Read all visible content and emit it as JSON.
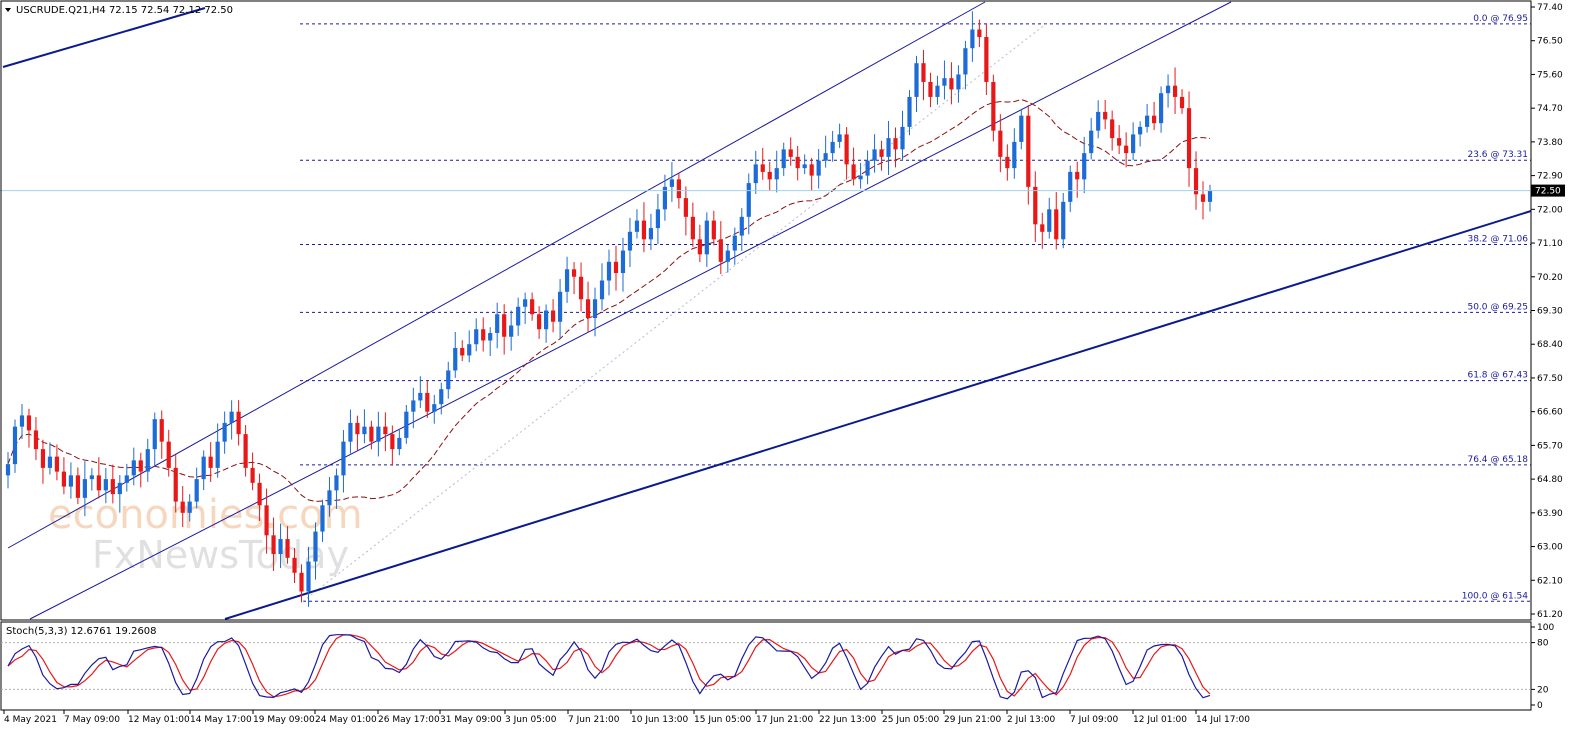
{
  "header": {
    "title": "USCRUDE.Q21,H4  72.15 72.54 72.12 72.50",
    "stoch_title": "Stoch(5,3,3) 12.6761 19.2608"
  },
  "watermark": {
    "line1": "economies.com",
    "line2": "FxNewsToday"
  },
  "colors": {
    "bull": "#1c6bd6",
    "bear": "#e81818",
    "ma": "#8b0f0f",
    "channel": "#1a1aa0",
    "trend": "#0b1a8c",
    "fib": "#1a1aa0",
    "stoch_main": "#1a1aa0",
    "stoch_signal": "#e81818",
    "price_line": "#9fd0e8"
  },
  "chart_data": {
    "type": "candlestick",
    "symbol": "USCRUDE.Q21",
    "timeframe": "H4",
    "ohlc": {
      "open": 72.15,
      "high": 72.54,
      "low": 72.12,
      "close": 72.5
    },
    "current_price": "72.50",
    "ylim": [
      61.2,
      77.4
    ],
    "y_ticks": [
      "77.40",
      "76.50",
      "75.60",
      "74.70",
      "73.80",
      "72.90",
      "72.00",
      "71.10",
      "70.20",
      "69.30",
      "68.40",
      "67.50",
      "66.60",
      "65.70",
      "64.80",
      "63.90",
      "63.00",
      "62.10",
      "61.20"
    ],
    "x_ticks": [
      "4 May 2021",
      "7 May 09:00",
      "12 May 01:00",
      "14 May 17:00",
      "19 May 09:00",
      "24 May 01:00",
      "26 May 17:00",
      "31 May 09:00",
      "3 Jun 05:00",
      "7 Jun 21:00",
      "10 Jun 13:00",
      "15 Jun 05:00",
      "17 Jun 21:00",
      "22 Jun 13:00",
      "25 Jun 05:00",
      "29 Jun 21:00",
      "2 Jul 13:00",
      "7 Jul 09:00",
      "12 Jul 01:00",
      "14 Jul 17:00"
    ],
    "fibonacci": [
      {
        "level": 0.0,
        "price": 76.95,
        "label": "0.0 @ 76.95"
      },
      {
        "level": 23.6,
        "price": 73.31,
        "label": "23.6 @ 73.31"
      },
      {
        "level": 38.2,
        "price": 71.06,
        "label": "38.2 @ 71.06"
      },
      {
        "level": 50.0,
        "price": 69.25,
        "label": "50.0 @ 69.25"
      },
      {
        "level": 61.8,
        "price": 67.43,
        "label": "61.8 @ 67.43"
      },
      {
        "level": 76.4,
        "price": 65.18,
        "label": "76.4 @ 65.18"
      },
      {
        "level": 100.0,
        "price": 61.54,
        "label": "100.0 @ 61.54"
      }
    ],
    "closes": [
      65.2,
      66.2,
      66.5,
      66.1,
      65.6,
      65.1,
      65.4,
      65.0,
      64.6,
      64.9,
      64.3,
      64.8,
      64.9,
      64.5,
      64.8,
      64.4,
      64.7,
      64.9,
      65.3,
      65.0,
      65.6,
      66.4,
      65.8,
      65.1,
      64.2,
      63.9,
      64.2,
      64.8,
      65.4,
      65.1,
      65.8,
      66.3,
      66.6,
      66.0,
      65.1,
      64.7,
      64.1,
      63.3,
      62.8,
      63.2,
      62.7,
      62.3,
      61.8,
      62.6,
      63.4,
      64.1,
      64.5,
      64.9,
      65.8,
      66.3,
      66.0,
      66.2,
      65.8,
      66.2,
      66.0,
      65.6,
      65.9,
      66.6,
      66.9,
      67.1,
      66.6,
      66.8,
      67.2,
      67.7,
      68.3,
      68.1,
      68.4,
      68.8,
      68.5,
      68.7,
      69.2,
      68.6,
      68.9,
      69.4,
      69.6,
      69.2,
      68.8,
      69.3,
      69.0,
      69.8,
      70.4,
      70.2,
      69.6,
      69.1,
      69.6,
      70.1,
      70.6,
      70.3,
      70.9,
      71.4,
      71.7,
      71.2,
      71.5,
      72.0,
      72.6,
      72.8,
      72.3,
      71.8,
      71.2,
      70.8,
      71.7,
      71.2,
      70.6,
      70.9,
      71.3,
      71.8,
      72.7,
      73.2,
      73.0,
      72.8,
      73.1,
      73.6,
      73.4,
      73.1,
      73.2,
      72.9,
      73.3,
      73.5,
      73.8,
      74.0,
      73.2,
      72.8,
      72.9,
      73.3,
      73.6,
      73.4,
      73.9,
      73.6,
      74.2,
      75.0,
      75.9,
      75.4,
      75.0,
      75.3,
      75.5,
      75.2,
      75.6,
      76.3,
      76.8,
      76.6,
      75.4,
      74.1,
      73.4,
      73.1,
      73.8,
      74.5,
      72.6,
      71.6,
      71.4,
      72.0,
      71.2,
      72.2,
      73.0,
      72.8,
      73.5,
      74.1,
      74.6,
      74.4,
      73.9,
      73.7,
      73.5,
      74.0,
      74.2,
      74.5,
      74.3,
      75.1,
      75.3,
      75.0,
      74.7,
      73.1,
      72.4,
      72.2,
      72.5
    ],
    "stoch_scale": [
      0,
      20,
      80,
      100
    ],
    "stoch_ticks": [
      "100",
      "80",
      "20",
      "0"
    ]
  }
}
